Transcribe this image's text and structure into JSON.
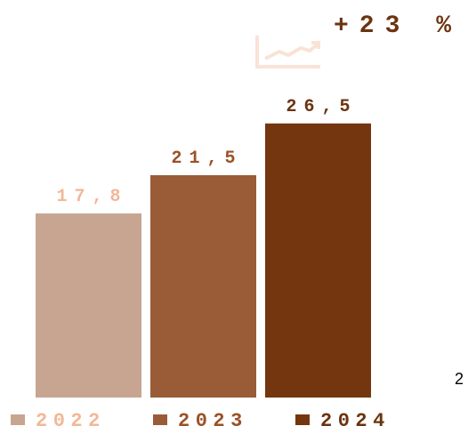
{
  "chart_data": {
    "type": "bar",
    "annotation": "+23 %",
    "side_label": "2",
    "categories": [
      "2022",
      "2023",
      "2024"
    ],
    "values": [
      17.8,
      21.5,
      26.5
    ],
    "value_labels": [
      "17,8",
      "21,5",
      "26,5"
    ],
    "colors": [
      "#c8a591",
      "#9a5c36",
      "#74360e"
    ],
    "label_colors": [
      "#f2b898",
      "#9a5226",
      "#6b3410"
    ]
  }
}
